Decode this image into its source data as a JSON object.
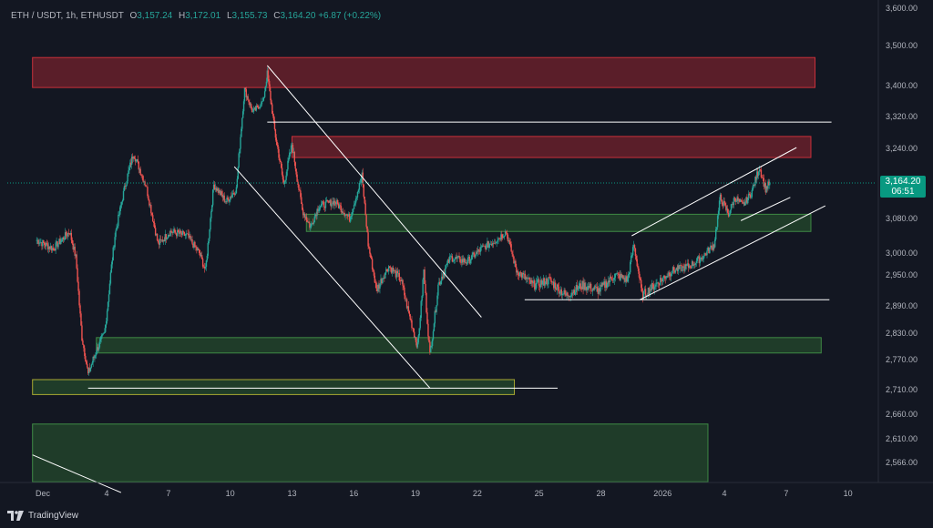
{
  "header": {
    "symbol": "ETH / USDT, 1h, ETHUSDT",
    "open_label": "O",
    "open": "3,157.24",
    "high_label": "H",
    "high": "3,172.01",
    "low_label": "L",
    "low": "3,155.73",
    "close_label": "C",
    "close": "3,164.20",
    "change": "+6.87 (+0.22%)"
  },
  "price_tag": {
    "price": "3,164.20",
    "countdown": "06:51"
  },
  "brand": {
    "name": "TradingView"
  },
  "colors": {
    "background": "#131722",
    "up": "#26a69a",
    "down": "#ef5350",
    "supply_zone": "#b22833",
    "demand_zone": "#2e6b34",
    "line": "#ffffff"
  },
  "chart_data": {
    "type": "candlestick",
    "symbol": "ETH / USDT",
    "interval": "1h",
    "y_ticks": [
      "3,600.00",
      "3,500.00",
      "3,400.00",
      "3,320.00",
      "3,240.00",
      "3,164.20",
      "3,080.00",
      "3,000.00",
      "2,950.00",
      "2,890.00",
      "2,830.00",
      "2,770.00",
      "2,710.00",
      "2,660.00",
      "2,610.00",
      "2,566.00"
    ],
    "x_ticks": [
      "Dec",
      "4",
      "7",
      "10",
      "13",
      "16",
      "19",
      "22",
      "25",
      "28",
      "2026",
      "4",
      "7",
      "10"
    ],
    "ylim": [
      2530,
      3610
    ],
    "last_price": 3164.2,
    "path_keypoints": [
      {
        "d": -0.3,
        "p": 3030
      },
      {
        "d": 0.5,
        "p": 3010
      },
      {
        "d": 1.3,
        "p": 3050
      },
      {
        "d": 1.6,
        "p": 2990
      },
      {
        "d": 1.9,
        "p": 2820
      },
      {
        "d": 2.2,
        "p": 2740
      },
      {
        "d": 2.6,
        "p": 2790
      },
      {
        "d": 3.0,
        "p": 2830
      },
      {
        "d": 3.5,
        "p": 3040
      },
      {
        "d": 4.0,
        "p": 3160
      },
      {
        "d": 4.4,
        "p": 3230
      },
      {
        "d": 5.0,
        "p": 3160
      },
      {
        "d": 5.6,
        "p": 3020
      },
      {
        "d": 6.2,
        "p": 3050
      },
      {
        "d": 7.0,
        "p": 3040
      },
      {
        "d": 7.6,
        "p": 3000
      },
      {
        "d": 7.9,
        "p": 2960
      },
      {
        "d": 8.3,
        "p": 3160
      },
      {
        "d": 8.9,
        "p": 3120
      },
      {
        "d": 9.4,
        "p": 3150
      },
      {
        "d": 9.8,
        "p": 3390
      },
      {
        "d": 10.2,
        "p": 3330
      },
      {
        "d": 10.7,
        "p": 3360
      },
      {
        "d": 10.9,
        "p": 3430
      },
      {
        "d": 11.3,
        "p": 3270
      },
      {
        "d": 11.7,
        "p": 3160
      },
      {
        "d": 12.1,
        "p": 3250
      },
      {
        "d": 12.6,
        "p": 3100
      },
      {
        "d": 13.0,
        "p": 3060
      },
      {
        "d": 13.4,
        "p": 3110
      },
      {
        "d": 14.2,
        "p": 3120
      },
      {
        "d": 14.9,
        "p": 3080
      },
      {
        "d": 15.5,
        "p": 3180
      },
      {
        "d": 15.8,
        "p": 3020
      },
      {
        "d": 16.2,
        "p": 2920
      },
      {
        "d": 16.8,
        "p": 2970
      },
      {
        "d": 17.4,
        "p": 2940
      },
      {
        "d": 17.8,
        "p": 2870
      },
      {
        "d": 18.2,
        "p": 2800
      },
      {
        "d": 18.5,
        "p": 2960
      },
      {
        "d": 18.8,
        "p": 2780
      },
      {
        "d": 19.2,
        "p": 2930
      },
      {
        "d": 19.8,
        "p": 2990
      },
      {
        "d": 20.6,
        "p": 2980
      },
      {
        "d": 21.3,
        "p": 3010
      },
      {
        "d": 22.0,
        "p": 3030
      },
      {
        "d": 22.5,
        "p": 3050
      },
      {
        "d": 23.0,
        "p": 2960
      },
      {
        "d": 23.8,
        "p": 2930
      },
      {
        "d": 24.6,
        "p": 2940
      },
      {
        "d": 25.4,
        "p": 2910
      },
      {
        "d": 26.2,
        "p": 2930
      },
      {
        "d": 27.0,
        "p": 2920
      },
      {
        "d": 27.8,
        "p": 2950
      },
      {
        "d": 28.4,
        "p": 2940
      },
      {
        "d": 28.7,
        "p": 3020
      },
      {
        "d": 29.1,
        "p": 2910
      },
      {
        "d": 29.7,
        "p": 2930
      },
      {
        "d": 30.6,
        "p": 2960
      },
      {
        "d": 31.4,
        "p": 2970
      },
      {
        "d": 32.0,
        "p": 2990
      },
      {
        "d": 32.6,
        "p": 3020
      },
      {
        "d": 32.9,
        "p": 3130
      },
      {
        "d": 33.3,
        "p": 3090
      },
      {
        "d": 33.6,
        "p": 3130
      },
      {
        "d": 34.0,
        "p": 3110
      },
      {
        "d": 34.4,
        "p": 3140
      },
      {
        "d": 34.8,
        "p": 3200
      },
      {
        "d": 35.1,
        "p": 3150
      },
      {
        "d": 35.3,
        "p": 3164.2
      }
    ],
    "zones": [
      {
        "kind": "supply",
        "from_day": -0.5,
        "to_day": 37.5,
        "low": 3395,
        "high": 3470
      },
      {
        "kind": "supply",
        "from_day": 12.1,
        "to_day": 37.3,
        "low": 3220,
        "high": 3270
      },
      {
        "kind": "demand",
        "from_day": 12.8,
        "to_day": 37.3,
        "low": 3050,
        "high": 3090
      },
      {
        "kind": "demand",
        "from_day": 2.6,
        "to_day": 37.8,
        "low": 2785,
        "high": 2820
      },
      {
        "kind": "demand",
        "from_day": -0.5,
        "to_day": 22.9,
        "low": 2700,
        "high": 2730
      },
      {
        "kind": "demand",
        "from_day": -0.5,
        "to_day": 32.3,
        "low": 2530,
        "high": 2640
      }
    ],
    "trendlines": [
      {
        "d1": 10.9,
        "p1": 3450,
        "d2": 21.3,
        "p2": 2865
      },
      {
        "d1": 9.3,
        "p1": 3200,
        "d2": 18.8,
        "p2": 2713
      },
      {
        "d1": 10.9,
        "p1": 3306,
        "d2": 38.3,
        "p2": 3306
      },
      {
        "d1": 2.2,
        "p1": 2713,
        "d2": 25.0,
        "p2": 2713
      },
      {
        "d1": 23.4,
        "p1": 2902,
        "d2": 38.2,
        "p2": 2902
      },
      {
        "d1": 28.6,
        "p1": 3040,
        "d2": 36.6,
        "p2": 3242
      },
      {
        "d1": 29.0,
        "p1": 2902,
        "d2": 38.0,
        "p2": 3110
      },
      {
        "d1": 33.9,
        "p1": 3075,
        "d2": 36.3,
        "p2": 3130
      },
      {
        "d1": -0.5,
        "p1": 2580,
        "d2": 3.8,
        "p2": 2510
      }
    ]
  }
}
